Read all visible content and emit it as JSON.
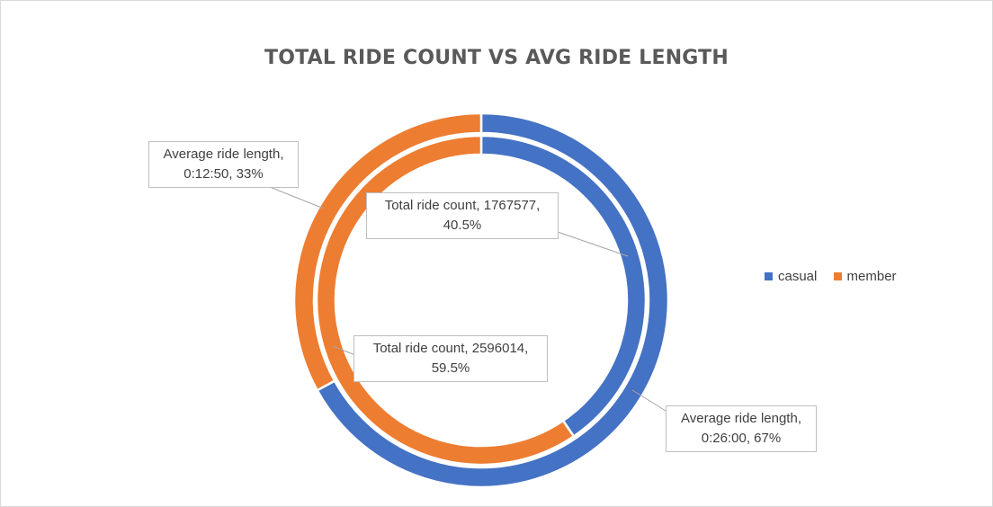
{
  "chart_data": {
    "type": "doughnut",
    "title": "TOTAL RIDE COUNT VS AVG RIDE LENGTH",
    "categories": [
      "casual",
      "member"
    ],
    "colors": {
      "casual": "#4472c4",
      "member": "#ed7d31"
    },
    "legend_position": "right",
    "series": [
      {
        "name": "Average ride length",
        "ring": "outer",
        "values": [
          "0:26:00",
          "0:12:50"
        ],
        "percents": [
          67,
          33
        ],
        "data_labels": [
          {
            "line1": "Average ride length,",
            "line2": "0:26:00, 67%"
          },
          {
            "line1": "Average ride length,",
            "line2": "0:12:50, 33%"
          }
        ]
      },
      {
        "name": "Total ride count",
        "ring": "inner",
        "values": [
          1767577,
          2596014
        ],
        "percents": [
          40.5,
          59.5
        ],
        "data_labels": [
          {
            "line1": "Total ride count, 1767577,",
            "line2": "40.5%"
          },
          {
            "line1": "Total ride count, 2596014,",
            "line2": "59.5%"
          }
        ]
      }
    ]
  }
}
